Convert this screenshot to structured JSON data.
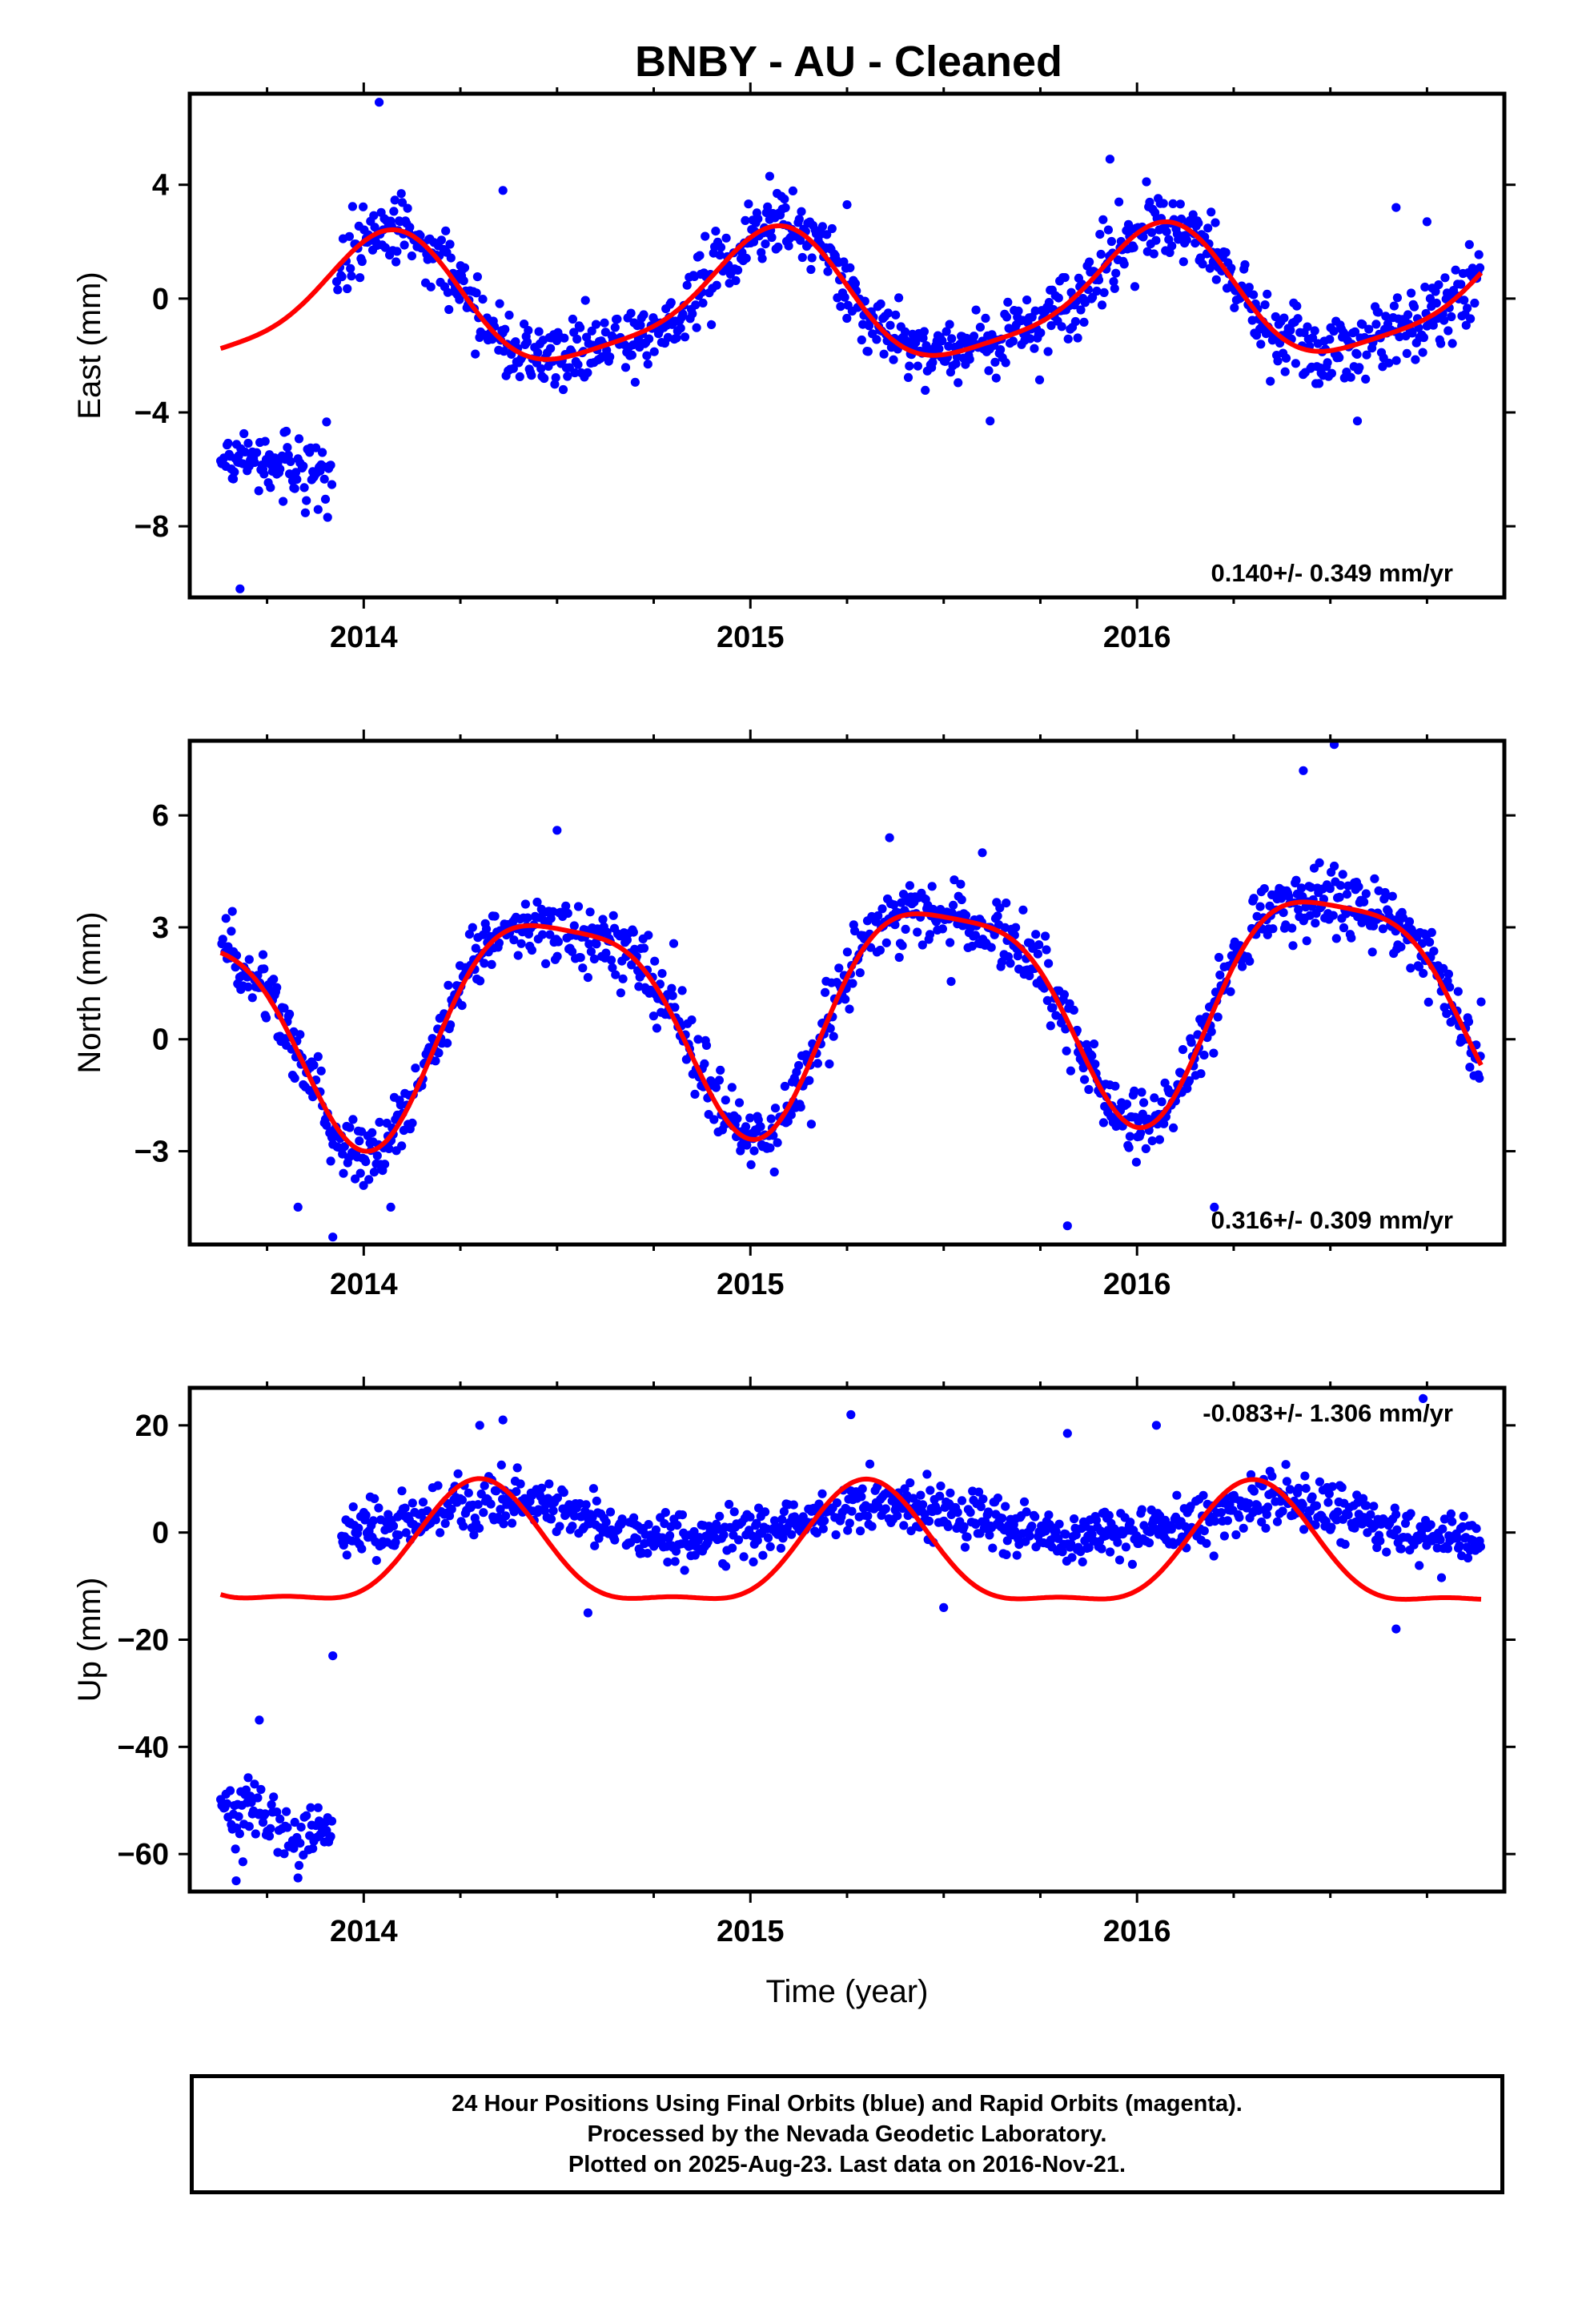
{
  "title": "BNBY  - AU - Cleaned",
  "footer": {
    "line1": "24 Hour Positions Using Final Orbits (blue) and Rapid Orbits (magenta).",
    "line2": "Processed by the Nevada Geodetic Laboratory.",
    "line3": "Plotted on 2025-Aug-23. Last data on 2016-Nov-21."
  },
  "colors": {
    "final_orbits": "#0000ff",
    "model_fit": "#ff0000",
    "frame": "#000000"
  },
  "chart_data": [
    {
      "type": "scatter",
      "ylabel": "East (mm)",
      "xlabel": "",
      "rate": "0.140+/- 0.349 mm/yr",
      "rate_position": "bottom-right",
      "xlim": [
        2013.55,
        2016.95
      ],
      "ylim": [
        -10.5,
        7.2
      ],
      "xticks": [
        2014,
        2015,
        2016
      ],
      "yticks": [
        4,
        0,
        -4,
        -8
      ],
      "grid": false,
      "series": [
        {
          "style": "dots",
          "segments": [
            {
              "x0": 2013.63,
              "x1": 2013.92,
              "pts": [
                [
                  2013.63,
                  -5.7
                ],
                [
                  2013.67,
                  -5.8
                ],
                [
                  2013.71,
                  -5.6
                ],
                [
                  2013.75,
                  -5.9
                ],
                [
                  2013.79,
                  -5.7
                ],
                [
                  2013.83,
                  -6.0
                ],
                [
                  2013.87,
                  -6.1
                ],
                [
                  2013.92,
                  -5.9
                ]
              ],
              "noise": 0.9
            },
            {
              "x0": 2013.93,
              "x1": 2016.89,
              "curve": "east_seasonal",
              "noise": 1.1
            }
          ],
          "outliers": [
            [
              2013.68,
              -10.2
            ],
            [
              2014.04,
              6.9
            ],
            [
              2015.93,
              4.9
            ],
            [
              2014.36,
              3.8
            ],
            [
              2015.05,
              4.3
            ],
            [
              2016.67,
              3.2
            ],
            [
              2015.62,
              -4.3
            ],
            [
              2016.57,
              -4.3
            ],
            [
              2015.25,
              3.3
            ],
            [
              2016.75,
              2.7
            ]
          ]
        },
        {
          "style": "line",
          "model": {
            "offset": -0.1,
            "trend": 0.14,
            "amp1": 2.2,
            "phase1": 2015.05,
            "amp2": 0.5,
            "phase2": 2015.1
          },
          "x": [
            2013.63,
            2016.89
          ]
        }
      ]
    },
    {
      "type": "scatter",
      "ylabel": "North (mm)",
      "xlabel": "",
      "rate": "0.316+/- 0.309 mm/yr",
      "rate_position": "bottom-right",
      "xlim": [
        2013.55,
        2016.95
      ],
      "ylim": [
        -5.5,
        8.0
      ],
      "xticks": [
        2014,
        2015,
        2016
      ],
      "yticks": [
        6,
        3,
        0,
        -3
      ],
      "grid": false,
      "series": [
        {
          "style": "dots",
          "segments": [
            {
              "x0": 2013.63,
              "x1": 2016.89,
              "curve": "north_seasonal",
              "noise": 0.8
            }
          ],
          "outliers": [
            [
              2013.92,
              -5.3
            ],
            [
              2013.83,
              -4.5
            ],
            [
              2014.07,
              -4.5
            ],
            [
              2015.82,
              -5.0
            ],
            [
              2016.2,
              -4.5
            ],
            [
              2016.51,
              7.9
            ],
            [
              2016.43,
              7.2
            ],
            [
              2014.5,
              5.6
            ],
            [
              2015.36,
              5.4
            ],
            [
              2015.6,
              5.0
            ],
            [
              2016.89,
              1.0
            ]
          ]
        },
        {
          "style": "line",
          "model": {
            "offset": 0.9,
            "trend": 0.316,
            "amp1": 2.9,
            "phase1": 2015.5,
            "amp2": 0.7,
            "phase2": 2015.27
          },
          "x": [
            2013.63,
            2016.89
          ]
        }
      ]
    },
    {
      "type": "scatter",
      "ylabel": "Up (mm)",
      "xlabel": "Time (year)",
      "rate": "-0.083+/- 1.306 mm/yr",
      "rate_position": "top-right",
      "xlim": [
        2013.55,
        2016.95
      ],
      "ylim": [
        -67,
        27
      ],
      "xticks": [
        2014,
        2015,
        2016
      ],
      "yticks": [
        20,
        0,
        -20,
        -40,
        -60
      ],
      "grid": false,
      "series": [
        {
          "style": "dots",
          "segments": [
            {
              "x0": 2013.63,
              "x1": 2013.92,
              "pts": [
                [
                  2013.63,
                  -51
                ],
                [
                  2013.67,
                  -53
                ],
                [
                  2013.71,
                  -50
                ],
                [
                  2013.75,
                  -54
                ],
                [
                  2013.79,
                  -55
                ],
                [
                  2013.83,
                  -57
                ],
                [
                  2013.87,
                  -56
                ],
                [
                  2013.92,
                  -56
                ]
              ],
              "noise": 5.0
            },
            {
              "x0": 2013.94,
              "x1": 2016.89,
              "curve": "up_flat",
              "noise": 4.5
            }
          ],
          "outliers": [
            [
              2013.67,
              -65
            ],
            [
              2013.73,
              -35
            ],
            [
              2013.92,
              -23
            ],
            [
              2014.3,
              20
            ],
            [
              2014.36,
              21
            ],
            [
              2015.26,
              22
            ],
            [
              2016.74,
              25
            ],
            [
              2016.05,
              20
            ],
            [
              2015.82,
              18.5
            ],
            [
              2016.67,
              -18
            ],
            [
              2014.58,
              -15
            ],
            [
              2015.5,
              -14
            ]
          ]
        },
        {
          "style": "line",
          "model": {
            "offset": -4.5,
            "trend": -0.083,
            "amp1": 11.0,
            "phase1": 2014.3,
            "amp2": 3.5,
            "phase2": 2014.3
          },
          "x": [
            2013.63,
            2016.89
          ]
        }
      ]
    }
  ]
}
